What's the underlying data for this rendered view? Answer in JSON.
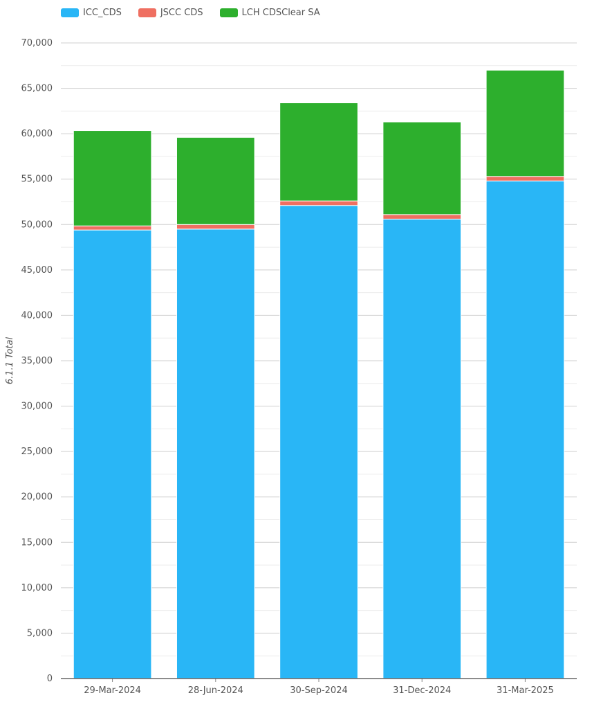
{
  "chart_data": {
    "type": "bar",
    "stacked": true,
    "categories": [
      "29-Mar-2024",
      "28-Jun-2024",
      "30-Sep-2024",
      "31-Dec-2024",
      "31-Mar-2025"
    ],
    "series": [
      {
        "name": "ICC_CDS",
        "color": "#29b6f6",
        "values": [
          49400,
          49500,
          52100,
          50600,
          54800
        ]
      },
      {
        "name": "JSCC CDS",
        "color": "#ef6f61",
        "values": [
          450,
          500,
          500,
          500,
          500
        ]
      },
      {
        "name": "LCH CDSClear SA",
        "color": "#2daf2d",
        "values": [
          10500,
          9600,
          10800,
          10200,
          11700
        ]
      }
    ],
    "title": "",
    "xlabel": "",
    "ylabel": "6.1.1 Total",
    "ylim": [
      0,
      70000
    ],
    "yticks": [
      0,
      5000,
      10000,
      15000,
      20000,
      25000,
      30000,
      35000,
      40000,
      45000,
      50000,
      55000,
      60000,
      65000,
      70000
    ],
    "ytick_labels": [
      "0",
      "5,000",
      "10,000",
      "15,000",
      "20,000",
      "25,000",
      "30,000",
      "35,000",
      "40,000",
      "45,000",
      "50,000",
      "55,000",
      "60,000",
      "65,000",
      "70,000"
    ],
    "grid": true,
    "legend_position": "top-left"
  }
}
